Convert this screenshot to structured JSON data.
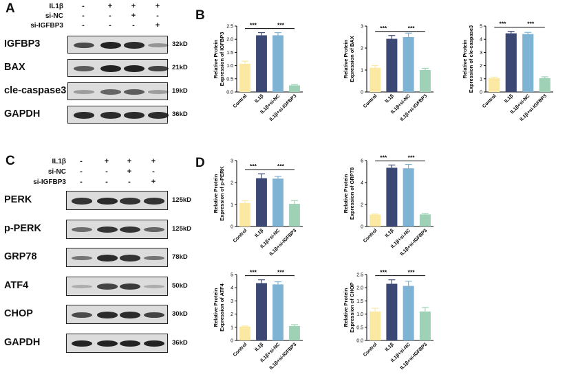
{
  "panel_labels": {
    "A": "A",
    "B": "B",
    "C": "C",
    "D": "D"
  },
  "blot_A": {
    "treatments": [
      {
        "label": "IL1β",
        "signs": [
          "-",
          "+",
          "+",
          "+"
        ]
      },
      {
        "label": "si-NC",
        "signs": [
          "-",
          "-",
          "+",
          "-"
        ]
      },
      {
        "label": "si-IGFBP3",
        "signs": [
          "-",
          "-",
          "-",
          "+"
        ]
      }
    ],
    "rows": [
      {
        "protein": "IGFBP3",
        "kd": "32kD",
        "intensity": [
          0.7,
          0.95,
          0.9,
          0.25
        ]
      },
      {
        "protein": "BAX",
        "kd": "21kD",
        "intensity": [
          0.6,
          0.95,
          0.95,
          0.75
        ]
      },
      {
        "protein": "cle-caspase3",
        "kd": "19kD",
        "intensity": [
          0.2,
          0.55,
          0.6,
          0.2
        ]
      },
      {
        "protein": "GAPDH",
        "kd": "36kD",
        "intensity": [
          0.9,
          0.9,
          0.9,
          0.9
        ]
      }
    ]
  },
  "blot_C": {
    "treatments": [
      {
        "label": "IL1β",
        "signs": [
          "-",
          "+",
          "+",
          "+"
        ]
      },
      {
        "label": "si-NC",
        "signs": [
          "-",
          "-",
          "+",
          "-"
        ]
      },
      {
        "label": "si-IGFBP3",
        "signs": [
          "-",
          "-",
          "-",
          "+"
        ]
      }
    ],
    "rows": [
      {
        "protein": "PERK",
        "kd": "125kD",
        "intensity": [
          0.85,
          0.9,
          0.85,
          0.85
        ]
      },
      {
        "protein": "p-PERK",
        "kd": "125kD",
        "intensity": [
          0.5,
          0.85,
          0.85,
          0.55
        ]
      },
      {
        "protein": "GRP78",
        "kd": "78kD",
        "intensity": [
          0.45,
          0.9,
          0.85,
          0.45
        ]
      },
      {
        "protein": "ATF4",
        "kd": "50kD",
        "intensity": [
          0.1,
          0.75,
          0.8,
          0.1
        ]
      },
      {
        "protein": "CHOP",
        "kd": "30kD",
        "intensity": [
          0.7,
          0.9,
          0.9,
          0.75
        ]
      },
      {
        "protein": "GAPDH",
        "kd": "36kD",
        "intensity": [
          0.95,
          0.95,
          0.95,
          0.95
        ]
      }
    ]
  },
  "colors": {
    "control": "#fbe9a3",
    "il1b": "#3c4874",
    "si_nc": "#7fb3d3",
    "si_igfbp3": "#9ed1b6"
  },
  "chart_data": [
    {
      "type": "bar",
      "panel": "B",
      "ylabel_lines": [
        "Relative Protein",
        "Expression of IGFBP3"
      ],
      "categories": [
        "Control",
        "IL1β",
        "IL1β+si-NC",
        "IL1β+si-IGFBP3"
      ],
      "values": [
        1.07,
        2.15,
        2.15,
        0.25
      ],
      "errors": [
        0.1,
        0.1,
        0.1,
        0.03
      ],
      "ylim": [
        0,
        2.5
      ],
      "yticks": [
        "0.0",
        "0.5",
        "1.0",
        "1.5",
        "2.0",
        "2.5"
      ],
      "sig": [
        "***",
        "***"
      ]
    },
    {
      "type": "bar",
      "panel": "B",
      "ylabel_lines": [
        "Relative Protein",
        "Expression of BAX"
      ],
      "categories": [
        "Control",
        "IL1β",
        "IL1β+si-NC",
        "IL1β+si-IGFBP3"
      ],
      "values": [
        1.1,
        2.42,
        2.5,
        1.0
      ],
      "errors": [
        0.1,
        0.15,
        0.18,
        0.08
      ],
      "ylim": [
        0,
        3
      ],
      "yticks": [
        "0",
        "1",
        "2",
        "3"
      ],
      "sig": [
        "***",
        "***"
      ]
    },
    {
      "type": "bar",
      "panel": "B",
      "ylabel_lines": [
        "Relative Protein",
        "Expression of cle-caspase3"
      ],
      "categories": [
        "Control",
        "IL1β",
        "IL1β+si-NC",
        "IL1β+si-IGFBP3"
      ],
      "values": [
        1.05,
        4.45,
        4.4,
        1.05
      ],
      "errors": [
        0.08,
        0.15,
        0.12,
        0.1
      ],
      "ylim": [
        0,
        5
      ],
      "yticks": [
        "0",
        "1",
        "2",
        "3",
        "4",
        "5"
      ],
      "sig": [
        "***",
        "***"
      ]
    },
    {
      "type": "bar",
      "panel": "D",
      "ylabel_lines": [
        "Relative Protein",
        "Expression of p-PERK"
      ],
      "categories": [
        "Control",
        "IL1β",
        "IL1β+si-NC",
        "IL1β+si-IGFBP3"
      ],
      "values": [
        1.07,
        2.2,
        2.18,
        1.03
      ],
      "errors": [
        0.1,
        0.2,
        0.1,
        0.15
      ],
      "ylim": [
        0,
        3
      ],
      "yticks": [
        "0",
        "1",
        "2",
        "3"
      ],
      "sig": [
        "***",
        "***"
      ]
    },
    {
      "type": "bar",
      "panel": "D",
      "ylabel_lines": [
        "Relative Protein",
        "Expression of GRP78"
      ],
      "categories": [
        "Control",
        "IL1β",
        "IL1β+si-NC",
        "IL1β+si-IGFBP3"
      ],
      "values": [
        1.08,
        5.35,
        5.3,
        1.1
      ],
      "errors": [
        0.05,
        0.25,
        0.35,
        0.08
      ],
      "ylim": [
        0,
        6
      ],
      "yticks": [
        "0",
        "2",
        "4",
        "6"
      ],
      "sig": [
        "***",
        "***"
      ]
    },
    {
      "type": "bar",
      "panel": "D",
      "ylabel_lines": [
        "Relative Protein",
        "Expression of ATF4"
      ],
      "categories": [
        "Control",
        "IL1β",
        "IL1β+si-NC",
        "IL1β+si-IGFBP3"
      ],
      "values": [
        1.05,
        4.35,
        4.25,
        1.1
      ],
      "errors": [
        0.05,
        0.25,
        0.2,
        0.1
      ],
      "ylim": [
        0,
        5
      ],
      "yticks": [
        "0",
        "1",
        "2",
        "3",
        "4",
        "5"
      ],
      "sig": [
        "***",
        "***"
      ]
    },
    {
      "type": "bar",
      "panel": "D",
      "ylabel_lines": [
        "Relative Protein",
        "Expression of CHOP"
      ],
      "categories": [
        "Control",
        "IL1β",
        "IL1β+si-NC",
        "IL1β+si-IGFBP3"
      ],
      "values": [
        1.1,
        2.15,
        2.07,
        1.1
      ],
      "errors": [
        0.12,
        0.15,
        0.18,
        0.15
      ],
      "ylim": [
        0,
        2.5
      ],
      "yticks": [
        "0.0",
        "0.5",
        "1.0",
        "1.5",
        "2.0",
        "2.5"
      ],
      "sig": [
        "***",
        "***"
      ]
    }
  ]
}
